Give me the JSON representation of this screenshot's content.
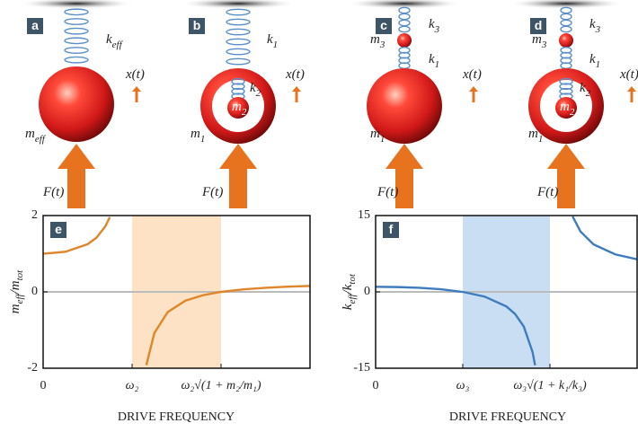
{
  "panels": [
    {
      "letter": "a",
      "labels": [
        {
          "t": "k",
          "s": "eff"
        },
        {
          "t": "x(t)"
        },
        {
          "t": "m",
          "s": "eff"
        },
        {
          "t": "F(t)"
        }
      ]
    },
    {
      "letter": "b",
      "labels": [
        {
          "t": "k",
          "s": "1"
        },
        {
          "t": "k",
          "s": "2"
        },
        {
          "t": "m",
          "s": "2"
        },
        {
          "t": "m",
          "s": "1"
        },
        {
          "t": "x(t)"
        },
        {
          "t": "F(t)"
        }
      ]
    },
    {
      "letter": "c",
      "labels": [
        {
          "t": "k",
          "s": "3"
        },
        {
          "t": "m",
          "s": "3"
        },
        {
          "t": "k",
          "s": "1"
        },
        {
          "t": "m",
          "s": "1"
        },
        {
          "t": "x(t)"
        },
        {
          "t": "F(t)"
        }
      ]
    },
    {
      "letter": "d",
      "labels": [
        {
          "t": "k",
          "s": "3"
        },
        {
          "t": "m",
          "s": "3"
        },
        {
          "t": "k",
          "s": "1"
        },
        {
          "t": "k",
          "s": "2"
        },
        {
          "t": "m",
          "s": "2"
        },
        {
          "t": "m",
          "s": "1"
        },
        {
          "t": "x(t)"
        },
        {
          "t": "F(t)"
        }
      ]
    }
  ],
  "chart_data": [
    {
      "type": "line",
      "panel": "e",
      "xlabel": "DRIVE FREQUENCY",
      "ylabel": [
        {
          "t": "m",
          "s": "eff"
        },
        {
          "t": "/m",
          "s": "tot"
        }
      ],
      "x": [
        0,
        0.25,
        0.5,
        0.6,
        0.7,
        0.75,
        1,
        1.16,
        1.25,
        1.4,
        1.6,
        1.8,
        2,
        2.25,
        2.5,
        2.75,
        3
      ],
      "series": [
        {
          "color": "#e0862a",
          "values": [
            1,
            1.05,
            1.25,
            1.42,
            1.72,
            1.96,
            null,
            -1.92,
            -1.08,
            -0.53,
            -0.23,
            -0.085,
            0,
            0.065,
            0.107,
            0.136,
            0.156
          ]
        }
      ],
      "shade": [
        1,
        2
      ],
      "shade_color": "#fde2c6",
      "zero_line": true,
      "xlim": [
        0,
        3
      ],
      "ylim": [
        -2,
        2
      ],
      "xticks": [
        0,
        {
          "value": 1,
          "label": "ω₂"
        },
        {
          "value": 2,
          "label": "ω₂√(1 + m₂/m₁)"
        }
      ],
      "yticks": [
        -2,
        0,
        2
      ]
    },
    {
      "type": "line",
      "panel": "f",
      "xlabel": "DRIVE FREQUENCY",
      "ylabel": [
        {
          "t": "k",
          "s": "eff"
        },
        {
          "t": "/k",
          "s": "tot"
        }
      ],
      "x": [
        0,
        0.25,
        0.5,
        0.75,
        1,
        1.25,
        1.5,
        1.6,
        1.7,
        1.8,
        1.83,
        2,
        2.26,
        2.35,
        2.5,
        2.75,
        3
      ],
      "series": [
        {
          "color": "#3e7bbf",
          "values": [
            1,
            0.95,
            0.8,
            0.51,
            0,
            -0.92,
            -2.86,
            -4.33,
            -6.81,
            -11.79,
            -14.43,
            null,
            14.83,
            11.88,
            9.33,
            7.37,
            6.4
          ]
        }
      ],
      "shade": [
        1,
        2
      ],
      "shade_color": "#c9def3",
      "zero_line": true,
      "xlim": [
        0,
        3
      ],
      "ylim": [
        -15,
        15
      ],
      "xticks": [
        0,
        {
          "value": 1,
          "label": "ω₃"
        },
        {
          "value": 2,
          "label": "ω₃√(1 + k₁/k₃)"
        }
      ],
      "yticks": [
        -15,
        0,
        15
      ]
    }
  ]
}
